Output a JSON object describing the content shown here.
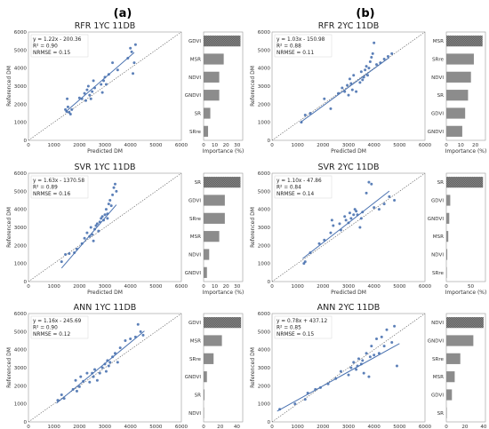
{
  "figure": {
    "column_labels": [
      "(a)",
      "(b)"
    ]
  },
  "chart_data": [
    {
      "id": "rfr-1yc",
      "type": "scatter",
      "title": "RFR 1YC 11DB",
      "xlabel": "Predicted DM",
      "ylabel": "Referenced DM",
      "xlim": [
        0,
        6000
      ],
      "ylim": [
        0,
        6000
      ],
      "xticks": [
        0,
        1000,
        2000,
        3000,
        4000,
        5000,
        6000
      ],
      "yticks": [
        0,
        1000,
        2000,
        3000,
        4000,
        5000,
        6000
      ],
      "equation": "y = 1.22x - 200.36",
      "r2": "R² = 0.90",
      "nrmse": "NRMSE = 0.15",
      "fit": {
        "slope": 1.22,
        "intercept": -200.36,
        "x_range": [
          1450,
          4150
        ]
      },
      "points": [
        [
          1450,
          1700
        ],
        [
          1500,
          1600
        ],
        [
          1550,
          1850
        ],
        [
          1600,
          1550
        ],
        [
          1520,
          2300
        ],
        [
          1700,
          1700
        ],
        [
          1650,
          1450
        ],
        [
          2000,
          2350
        ],
        [
          2100,
          2300
        ],
        [
          2200,
          2600
        ],
        [
          2250,
          2200
        ],
        [
          2300,
          2800
        ],
        [
          2350,
          3000
        ],
        [
          2400,
          2500
        ],
        [
          2500,
          2700
        ],
        [
          2450,
          2300
        ],
        [
          2550,
          3300
        ],
        [
          2600,
          2900
        ],
        [
          2850,
          3100
        ],
        [
          2900,
          2650
        ],
        [
          2950,
          3300
        ],
        [
          3000,
          3500
        ],
        [
          3050,
          3100
        ],
        [
          3150,
          3650
        ],
        [
          3300,
          4300
        ],
        [
          3500,
          3900
        ],
        [
          3900,
          4550
        ],
        [
          4000,
          5100
        ],
        [
          4050,
          4900
        ],
        [
          4150,
          4300
        ],
        [
          4200,
          5300
        ],
        [
          4100,
          3700
        ]
      ],
      "importance": {
        "xlabel": "Importance (%)",
        "xlim": [
          0,
          35
        ],
        "xticks": [
          0,
          10,
          20,
          30
        ],
        "labels": [
          "GDVI",
          "MSR",
          "NDVI",
          "GNDVI",
          "SR",
          "SRre"
        ],
        "values": [
          33,
          18,
          14,
          14,
          6,
          4
        ],
        "top_hatched": true
      }
    },
    {
      "id": "rfr-2yc",
      "type": "scatter",
      "title": "RFR 2YC 11DB",
      "xlabel": "Predicted DM",
      "ylabel": "Referenced DM",
      "xlim": [
        0,
        6000
      ],
      "ylim": [
        0,
        6000
      ],
      "xticks": [
        0,
        1000,
        2000,
        3000,
        4000,
        5000,
        6000
      ],
      "yticks": [
        0,
        1000,
        2000,
        3000,
        4000,
        5000,
        6000
      ],
      "equation": "y = 1.03x - 150.98",
      "r2": "R² = 0.88",
      "nrmse": "NRMSE = 0.11",
      "fit": {
        "slope": 1.03,
        "intercept": -150.98,
        "x_range": [
          1100,
          4600
        ]
      },
      "points": [
        [
          1150,
          1000
        ],
        [
          1300,
          1400
        ],
        [
          1500,
          1500
        ],
        [
          2050,
          2300
        ],
        [
          2300,
          1750
        ],
        [
          2600,
          2600
        ],
        [
          2750,
          2900
        ],
        [
          2850,
          2700
        ],
        [
          2950,
          3050
        ],
        [
          3000,
          2500
        ],
        [
          3050,
          3400
        ],
        [
          3100,
          3150
        ],
        [
          3150,
          2800
        ],
        [
          3200,
          3600
        ],
        [
          3300,
          2700
        ],
        [
          3450,
          3200
        ],
        [
          3500,
          3800
        ],
        [
          3550,
          3350
        ],
        [
          3650,
          3900
        ],
        [
          3700,
          4100
        ],
        [
          3750,
          3600
        ],
        [
          3800,
          4000
        ],
        [
          3850,
          4350
        ],
        [
          3900,
          4600
        ],
        [
          3950,
          4800
        ],
        [
          4000,
          5400
        ],
        [
          4100,
          4200
        ],
        [
          4250,
          4300
        ],
        [
          4400,
          4500
        ],
        [
          4550,
          4650
        ],
        [
          4700,
          4800
        ],
        [
          3600,
          3500
        ]
      ],
      "importance": {
        "xlabel": "Importance (%)",
        "xlim": [
          0,
          27
        ],
        "xticks": [
          0,
          10,
          20
        ],
        "labels": [
          "MSR",
          "SRre",
          "NDVI",
          "SR",
          "GDVI",
          "GNDVI"
        ],
        "values": [
          25,
          19,
          17,
          15,
          13,
          11
        ],
        "top_hatched": true
      }
    },
    {
      "id": "svr-1yc",
      "type": "scatter",
      "title": "SVR 1YC 11DB",
      "xlabel": "Predicted DM",
      "ylabel": "Referenced DM",
      "xlim": [
        0,
        6000
      ],
      "ylim": [
        0,
        6000
      ],
      "xticks": [
        0,
        1000,
        2000,
        3000,
        4000,
        5000,
        6000
      ],
      "yticks": [
        0,
        1000,
        2000,
        3000,
        4000,
        5000,
        6000
      ],
      "equation": "y = 1.63x - 1370.58",
      "r2": "R² = 0.89",
      "nrmse": "NRMSE = 0.16",
      "fit": {
        "slope": 1.63,
        "intercept": -1370.58,
        "x_range": [
          1300,
          3450
        ]
      },
      "points": [
        [
          1300,
          1100
        ],
        [
          1450,
          1500
        ],
        [
          1600,
          1550
        ],
        [
          1800,
          1600
        ],
        [
          1900,
          1800
        ],
        [
          2100,
          2100
        ],
        [
          2200,
          2400
        ],
        [
          2300,
          2700
        ],
        [
          2400,
          2500
        ],
        [
          2450,
          3000
        ],
        [
          2500,
          2600
        ],
        [
          2550,
          2250
        ],
        [
          2600,
          2900
        ],
        [
          2650,
          3100
        ],
        [
          2700,
          3200
        ],
        [
          2750,
          2800
        ],
        [
          2800,
          3300
        ],
        [
          2850,
          3500
        ],
        [
          2900,
          3600
        ],
        [
          2950,
          3400
        ],
        [
          3000,
          3700
        ],
        [
          3050,
          4000
        ],
        [
          3100,
          3750
        ],
        [
          3150,
          4300
        ],
        [
          3200,
          4500
        ],
        [
          3250,
          4200
        ],
        [
          3300,
          4800
        ],
        [
          3350,
          5200
        ],
        [
          3400,
          5400
        ],
        [
          3450,
          5000
        ],
        [
          3100,
          3500
        ]
      ],
      "importance": {
        "xlabel": "Importance (%)",
        "xlim": [
          0,
          35
        ],
        "xticks": [
          0,
          10,
          20,
          30
        ],
        "labels": [
          "SR",
          "GDVI",
          "SRre",
          "MSR",
          "NDVI",
          "GNDVI"
        ],
        "values": [
          33,
          19,
          19,
          14,
          5,
          3
        ],
        "top_hatched": true
      }
    },
    {
      "id": "svr-2yc",
      "type": "scatter",
      "title": "SVR 2YC 11DB",
      "xlabel": "Predicted DM",
      "ylabel": "Referenced DM",
      "xlim": [
        0,
        6000
      ],
      "ylim": [
        0,
        6000
      ],
      "xticks": [
        0,
        1000,
        2000,
        3000,
        4000,
        5000,
        6000
      ],
      "yticks": [
        0,
        1000,
        2000,
        3000,
        4000,
        5000,
        6000
      ],
      "equation": "y = 1.10x - 47.86",
      "r2": "R² = 0.84",
      "nrmse": "NRMSE = 0.14",
      "fit": {
        "slope": 1.1,
        "intercept": -47.86,
        "x_range": [
          1200,
          4600
        ]
      },
      "points": [
        [
          1250,
          1000
        ],
        [
          1300,
          1100
        ],
        [
          1500,
          1600
        ],
        [
          1850,
          2100
        ],
        [
          2050,
          2300
        ],
        [
          2300,
          2700
        ],
        [
          2350,
          3400
        ],
        [
          2400,
          3100
        ],
        [
          2650,
          3200
        ],
        [
          2700,
          2850
        ],
        [
          2850,
          3600
        ],
        [
          2900,
          3400
        ],
        [
          3000,
          3250
        ],
        [
          3050,
          3800
        ],
        [
          3100,
          3500
        ],
        [
          3200,
          3700
        ],
        [
          3250,
          4000
        ],
        [
          3300,
          3900
        ],
        [
          3350,
          3700
        ],
        [
          3450,
          3000
        ],
        [
          3500,
          3500
        ],
        [
          3550,
          3850
        ],
        [
          3700,
          4900
        ],
        [
          3800,
          5500
        ],
        [
          3900,
          5400
        ],
        [
          4000,
          4100
        ],
        [
          4200,
          4000
        ],
        [
          4400,
          4300
        ],
        [
          4600,
          4700
        ],
        [
          4800,
          4500
        ]
      ],
      "importance": {
        "xlabel": "Importance (%)",
        "xlim": [
          0,
          80
        ],
        "xticks": [
          0,
          50
        ],
        "labels": [
          "SR",
          "GDVI",
          "GNDVI",
          "MSR",
          "NDVI",
          "SRre"
        ],
        "values": [
          75,
          8,
          6,
          4,
          2,
          1
        ],
        "top_hatched": true
      }
    },
    {
      "id": "ann-1yc",
      "type": "scatter",
      "title": "ANN 1YC 11DB",
      "xlabel": "Predicted DM",
      "ylabel": "Referenced DM",
      "xlim": [
        0,
        6000
      ],
      "ylim": [
        0,
        6000
      ],
      "xticks": [
        0,
        1000,
        2000,
        3000,
        4000,
        5000,
        6000
      ],
      "yticks": [
        0,
        1000,
        2000,
        3000,
        4000,
        5000,
        6000
      ],
      "equation": "y = 1.16x - 245.69",
      "r2": "R² = 0.90",
      "nrmse": "NRMSE = 0.12",
      "fit": {
        "slope": 1.16,
        "intercept": -245.69,
        "x_range": [
          1100,
          4550
        ]
      },
      "points": [
        [
          1150,
          1200
        ],
        [
          1300,
          1500
        ],
        [
          1400,
          1300
        ],
        [
          1750,
          1800
        ],
        [
          1850,
          2300
        ],
        [
          1900,
          1700
        ],
        [
          2000,
          1950
        ],
        [
          2050,
          2500
        ],
        [
          2150,
          2250
        ],
        [
          2300,
          2700
        ],
        [
          2400,
          2200
        ],
        [
          2500,
          2700
        ],
        [
          2550,
          2500
        ],
        [
          2600,
          2900
        ],
        [
          2700,
          2300
        ],
        [
          2800,
          2700
        ],
        [
          2900,
          3000
        ],
        [
          3000,
          3200
        ],
        [
          3050,
          2800
        ],
        [
          3100,
          3400
        ],
        [
          3200,
          3300
        ],
        [
          3300,
          3600
        ],
        [
          3400,
          3800
        ],
        [
          3500,
          3300
        ],
        [
          3600,
          4100
        ],
        [
          3800,
          4500
        ],
        [
          4000,
          4600
        ],
        [
          4200,
          4700
        ],
        [
          4300,
          5400
        ],
        [
          4400,
          5000
        ],
        [
          4500,
          4800
        ],
        [
          3150,
          3100
        ]
      ],
      "importance": {
        "xlabel": "Importance (%)",
        "xlim": [
          0,
          47
        ],
        "xticks": [
          0,
          20,
          40
        ],
        "labels": [
          "GDVI",
          "MSR",
          "SRre",
          "GNDVI",
          "SR",
          "NDVI"
        ],
        "values": [
          45,
          22,
          12,
          4,
          1,
          0.5
        ],
        "top_hatched": true
      }
    },
    {
      "id": "ann-2yc",
      "type": "scatter",
      "title": "ANN 2YC 11DB",
      "xlabel": "Predicted DM",
      "ylabel": "Referenced DM",
      "xlim": [
        0,
        6000
      ],
      "ylim": [
        0,
        6000
      ],
      "xticks": [
        0,
        1000,
        2000,
        3000,
        4000,
        5000,
        6000
      ],
      "yticks": [
        0,
        1000,
        2000,
        3000,
        4000,
        5000,
        6000
      ],
      "equation": "y = 0.78x + 437.12",
      "r2": "R² = 0.85",
      "nrmse": "NRMSE = 0.15",
      "fit": {
        "slope": 0.78,
        "intercept": 437.12,
        "x_range": [
          200,
          5000
        ]
      },
      "points": [
        [
          300,
          700
        ],
        [
          900,
          1000
        ],
        [
          1300,
          1250
        ],
        [
          1400,
          1600
        ],
        [
          1700,
          1800
        ],
        [
          1900,
          1900
        ],
        [
          2200,
          2100
        ],
        [
          2500,
          2400
        ],
        [
          2700,
          2800
        ],
        [
          3000,
          2600
        ],
        [
          3100,
          3000
        ],
        [
          3200,
          3300
        ],
        [
          3300,
          2900
        ],
        [
          3350,
          3100
        ],
        [
          3400,
          3500
        ],
        [
          3500,
          3200
        ],
        [
          3550,
          3400
        ],
        [
          3600,
          2700
        ],
        [
          3700,
          3800
        ],
        [
          3800,
          2500
        ],
        [
          3850,
          3600
        ],
        [
          4000,
          3700
        ],
        [
          4100,
          4600
        ],
        [
          4200,
          3800
        ],
        [
          4300,
          4700
        ],
        [
          4400,
          4200
        ],
        [
          4500,
          5100
        ],
        [
          4700,
          4400
        ],
        [
          4800,
          5300
        ],
        [
          4900,
          3100
        ],
        [
          3900,
          4200
        ]
      ],
      "importance": {
        "xlabel": "Importance (%)",
        "xlim": [
          0,
          42
        ],
        "xticks": [
          0,
          20,
          40
        ],
        "labels": [
          "NDVI",
          "GNDVI",
          "SRre",
          "MSR",
          "GDVI",
          "SR"
        ],
        "values": [
          40,
          29,
          15,
          9,
          6,
          0.5
        ],
        "top_hatched": true
      }
    }
  ]
}
